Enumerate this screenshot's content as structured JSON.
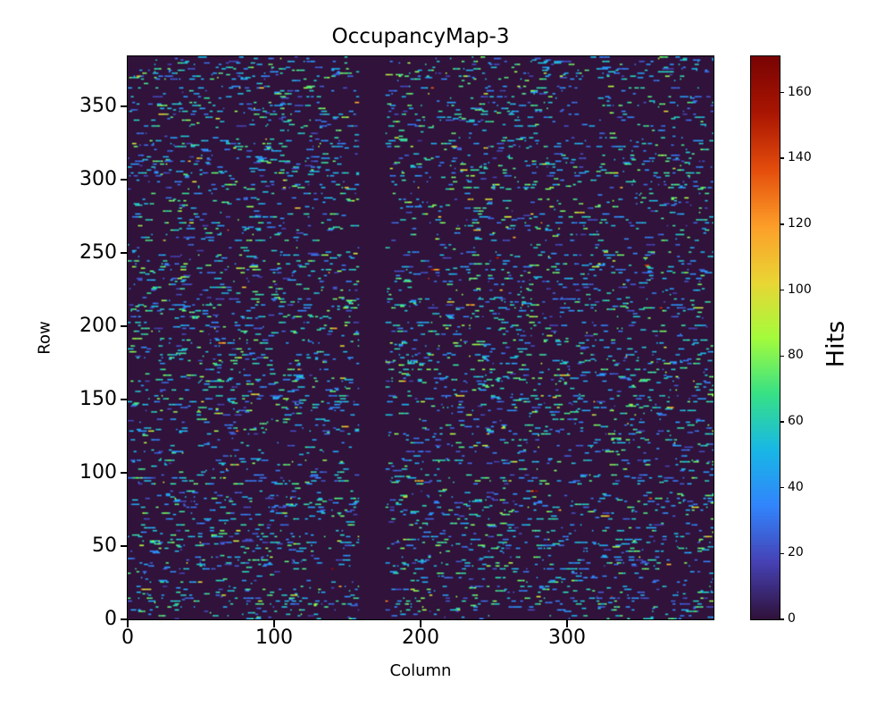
{
  "figure": {
    "background_color": "#ffffff",
    "text_color": "#000000"
  },
  "chart_data": {
    "type": "heatmap",
    "title": "OccupancyMap-3",
    "xlabel": "Column",
    "ylabel": "Row",
    "colorbar_label": "Hits",
    "colormap": "turbo",
    "grid": {
      "cols": 400,
      "rows": 384
    },
    "xlim": [
      0,
      400
    ],
    "ylim": [
      0,
      384
    ],
    "vlim": [
      0,
      171
    ],
    "x_ticks": [
      0,
      100,
      200,
      300
    ],
    "y_ticks": [
      0,
      50,
      100,
      150,
      200,
      250,
      300,
      350
    ],
    "colorbar_ticks": [
      0,
      20,
      40,
      60,
      80,
      100,
      120,
      140,
      160
    ],
    "zero_value_color": "#30123b",
    "dead_column_band": {
      "start_col": 158,
      "end_col": 176
    },
    "pattern": {
      "description": "sparse random hit occupancy drawn as short horizontal dashes; most hit values 16-76 (blue/cyan/teal), occasional 72-110 (green), rare 115-171 (orange/red); vertical dead stripe at the dead column band",
      "seed": 1337,
      "quiet_row_fraction": 0.18,
      "dash_start_prob_active_row": 0.055,
      "dash_start_prob_quiet_row": 0.002,
      "max_dash_length": 9,
      "fill_fraction_est": 0.12,
      "hot_pixel": {
        "col": 227,
        "row": 200,
        "value": 171
      }
    },
    "turbo_stops": [
      [
        48,
        18,
        59
      ],
      [
        70,
        66,
        181
      ],
      [
        50,
        132,
        252
      ],
      [
        24,
        183,
        230
      ],
      [
        55,
        225,
        134
      ],
      [
        164,
        252,
        60
      ],
      [
        234,
        213,
        52
      ],
      [
        253,
        158,
        41
      ],
      [
        228,
        77,
        12
      ],
      [
        170,
        22,
        2
      ],
      [
        122,
        4,
        3
      ]
    ],
    "legend_position": "right-colorbar",
    "grid_lines": false
  }
}
